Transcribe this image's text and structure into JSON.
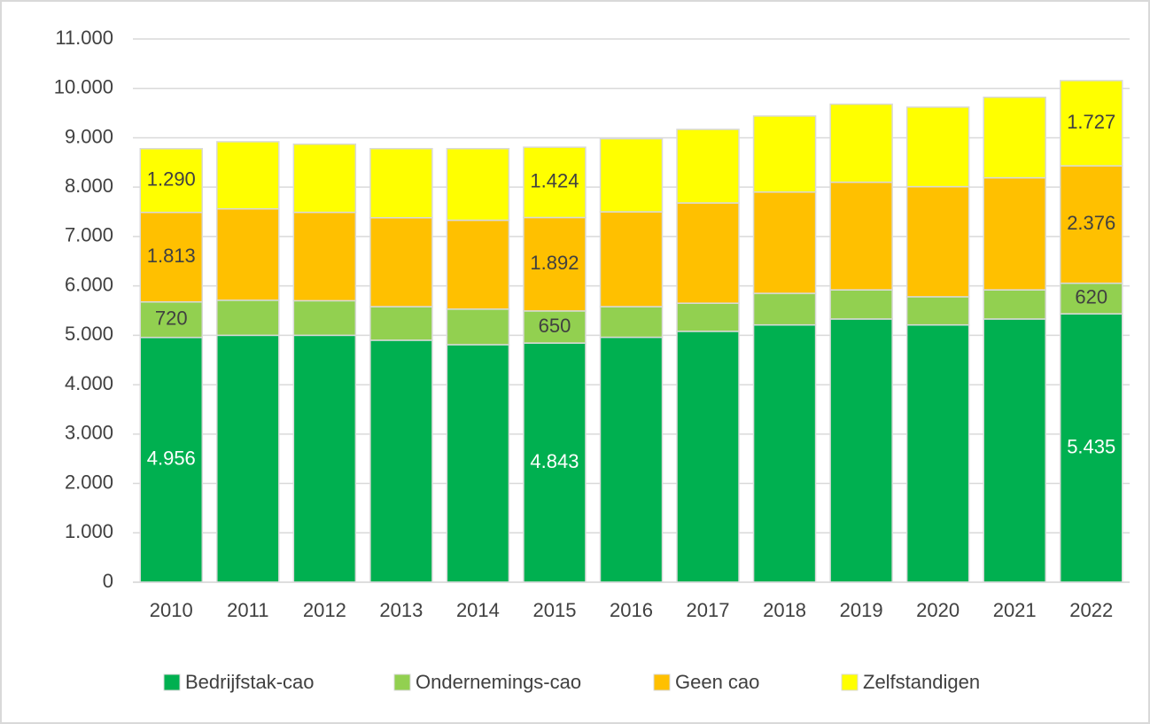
{
  "chart_data": {
    "type": "stacked_bar",
    "categories": [
      "2010",
      "2011",
      "2012",
      "2013",
      "2014",
      "2015",
      "2016",
      "2017",
      "2018",
      "2019",
      "2020",
      "2021",
      "2022"
    ],
    "series": [
      {
        "name": "Bedrijfstak-cao",
        "color": "#00b050",
        "values": [
          4956,
          5000,
          5000,
          4900,
          4810,
          4843,
          4960,
          5080,
          5210,
          5330,
          5210,
          5330,
          5435
        ],
        "value_labels": [
          "4.956",
          null,
          null,
          null,
          null,
          "4.843",
          null,
          null,
          null,
          null,
          null,
          null,
          "5.435"
        ]
      },
      {
        "name": "Ondernemings-cao",
        "color": "#92d050",
        "values": [
          720,
          710,
          700,
          680,
          720,
          650,
          620,
          570,
          640,
          590,
          570,
          590,
          620
        ],
        "value_labels": [
          "720",
          null,
          null,
          null,
          null,
          "650",
          null,
          null,
          null,
          null,
          null,
          null,
          "620"
        ]
      },
      {
        "name": "Geen cao",
        "color": "#ffc000",
        "values": [
          1813,
          1850,
          1790,
          1800,
          1800,
          1892,
          1920,
          2030,
          2050,
          2180,
          2230,
          2270,
          2376
        ],
        "value_labels": [
          "1.813",
          null,
          null,
          null,
          null,
          "1.892",
          null,
          null,
          null,
          null,
          null,
          null,
          "2.376"
        ]
      },
      {
        "name": "Zelfstandigen",
        "color": "#ffff00",
        "values": [
          1290,
          1360,
          1380,
          1400,
          1450,
          1424,
          1480,
          1490,
          1540,
          1580,
          1610,
          1630,
          1727
        ],
        "value_labels": [
          "1.290",
          null,
          null,
          null,
          null,
          "1.424",
          null,
          null,
          null,
          null,
          null,
          null,
          "1.727"
        ]
      }
    ],
    "ylim": [
      0,
      11000
    ],
    "yticks": [
      0,
      {
        "value": 1000,
        "label": "1.000"
      },
      {
        "value": 2000,
        "label": "2.000"
      },
      {
        "value": 3000,
        "label": "3.000"
      },
      {
        "value": 4000,
        "label": "4.000"
      },
      {
        "value": 5000,
        "label": "5.000"
      },
      {
        "value": 6000,
        "label": "6.000"
      },
      {
        "value": 7000,
        "label": "7.000"
      },
      {
        "value": 8000,
        "label": "8.000"
      },
      {
        "value": 9000,
        "label": "9.000"
      },
      {
        "value": 10000,
        "label": "10.000"
      },
      {
        "value": 11000,
        "label": "11.000"
      }
    ],
    "grid": true,
    "legend": "bottom"
  }
}
